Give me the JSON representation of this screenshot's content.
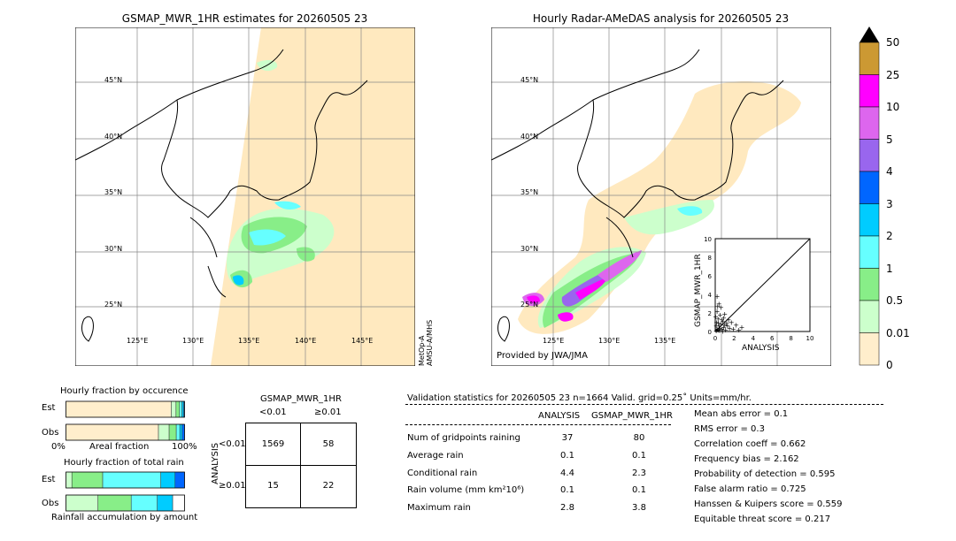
{
  "left_map": {
    "title": "GSMAP_MWR_1HR estimates for 20260505 23",
    "lat_labels": [
      "45°N",
      "40°N",
      "35°N",
      "30°N",
      "25°N"
    ],
    "lon_labels": [
      "125°E",
      "130°E",
      "135°E",
      "140°E",
      "145°E"
    ],
    "satellite_note": "MetOp-A\nAMSU-A/MHS"
  },
  "right_map": {
    "title": "Hourly Radar-AMeDAS analysis for 20260505 23",
    "lat_labels": [
      "45°N",
      "40°N",
      "35°N",
      "30°N",
      "25°N"
    ],
    "lon_labels": [
      "125°E",
      "130°E",
      "135°E"
    ],
    "provider": "Provided by JWA/JMA"
  },
  "colorbar": {
    "levels": [
      "50",
      "25",
      "10",
      "5",
      "4",
      "3",
      "2",
      "1",
      "0.5",
      "0.01",
      "0"
    ],
    "colors": [
      "#cc9933",
      "#ff00ff",
      "#dd66ee",
      "#9966ee",
      "#0066ff",
      "#00ccff",
      "#66ffff",
      "#88ee88",
      "#ccffcc",
      "#ffeecc"
    ]
  },
  "chart_data": [
    {
      "type": "scatter",
      "xlabel": "ANALYSIS",
      "ylabel": "GSMAP_MWR_1HR",
      "xlim": [
        0,
        10
      ],
      "ylim": [
        0,
        10
      ],
      "ticks": [
        "0",
        "2",
        "4",
        "6",
        "8",
        "10"
      ],
      "points": [
        [
          0.1,
          0.1
        ],
        [
          0.2,
          0.3
        ],
        [
          0.3,
          0.2
        ],
        [
          0.4,
          0.6
        ],
        [
          0.5,
          0.4
        ],
        [
          0.6,
          0.8
        ],
        [
          0.7,
          0.3
        ],
        [
          0.8,
          1.1
        ],
        [
          0.9,
          0.5
        ],
        [
          1.0,
          0.7
        ],
        [
          1.1,
          0.2
        ],
        [
          1.2,
          0.9
        ],
        [
          0.3,
          1.4
        ],
        [
          0.5,
          1.8
        ],
        [
          0.2,
          2.2
        ],
        [
          0.6,
          2.6
        ],
        [
          0.4,
          3.0
        ],
        [
          0.2,
          3.8
        ],
        [
          0.9,
          1.5
        ],
        [
          1.3,
          0.6
        ],
        [
          1.5,
          0.4
        ],
        [
          1.7,
          1.0
        ],
        [
          1.9,
          0.3
        ],
        [
          2.2,
          0.7
        ],
        [
          2.5,
          0.2
        ],
        [
          2.8,
          0.5
        ],
        [
          0.1,
          0.6
        ],
        [
          0.15,
          1.0
        ],
        [
          0.35,
          0.9
        ],
        [
          0.7,
          1.3
        ],
        [
          1.0,
          1.9
        ],
        [
          0.45,
          0.15
        ],
        [
          1.4,
          1.3
        ],
        [
          0.25,
          2.7
        ],
        [
          0.05,
          1.6
        ],
        [
          0.8,
          0.05
        ]
      ]
    },
    {
      "type": "bar",
      "title": "Hourly fraction by occurence",
      "categories": [
        "Est",
        "Obs"
      ],
      "xlabel": "Areal fraction",
      "x_ticks": [
        "0%",
        "100%"
      ],
      "segments": {
        "Est": [
          {
            "value": 0.888,
            "color": "#ffeecc"
          },
          {
            "value": 0.04,
            "color": "#ccffcc"
          },
          {
            "value": 0.03,
            "color": "#88ee88"
          },
          {
            "value": 0.02,
            "color": "#66ffff"
          },
          {
            "value": 0.015,
            "color": "#00ccff"
          },
          {
            "value": 0.007,
            "color": "#0066ff"
          }
        ],
        "Obs": [
          {
            "value": 0.78,
            "color": "#ffeecc"
          },
          {
            "value": 0.09,
            "color": "#ccffcc"
          },
          {
            "value": 0.06,
            "color": "#88ee88"
          },
          {
            "value": 0.03,
            "color": "#66ffff"
          },
          {
            "value": 0.02,
            "color": "#00ccff"
          },
          {
            "value": 0.02,
            "color": "#0066ff"
          }
        ]
      }
    },
    {
      "type": "bar",
      "title": "Hourly fraction of total rain",
      "categories": [
        "Est",
        "Obs"
      ],
      "xlabel": "Rainfall accumulation by amount",
      "segments": {
        "Est": [
          {
            "value": 0.05,
            "color": "#ccffcc"
          },
          {
            "value": 0.26,
            "color": "#88ee88"
          },
          {
            "value": 0.49,
            "color": "#66ffff"
          },
          {
            "value": 0.12,
            "color": "#00ccff"
          },
          {
            "value": 0.08,
            "color": "#0066ff"
          }
        ],
        "Obs": [
          {
            "value": 0.27,
            "color": "#ccffcc"
          },
          {
            "value": 0.28,
            "color": "#88ee88"
          },
          {
            "value": 0.22,
            "color": "#66ffff"
          },
          {
            "value": 0.13,
            "color": "#00ccff"
          },
          {
            "value": 0.1,
            "color": "#ffffff"
          }
        ]
      }
    }
  ],
  "contingency": {
    "title": "GSMAP_MWR_1HR",
    "col_labels": [
      "<0.01",
      "≥0.01"
    ],
    "row_axis": "ANALYSIS",
    "row_labels": [
      "<0.01",
      "≥0.01"
    ],
    "cells": [
      [
        "1569",
        "58"
      ],
      [
        "15",
        "22"
      ]
    ]
  },
  "validation": {
    "header": "Validation statistics for 20260505 23  n=1664 Valid. grid=0.25˚ Units=mm/hr.",
    "col_analysis": "ANALYSIS",
    "col_gsmap": "GSMAP_MWR_1HR",
    "rows": [
      {
        "label": "Num of gridpoints raining",
        "analysis": "37",
        "gsmap": "80"
      },
      {
        "label": "Average rain",
        "analysis": "0.1",
        "gsmap": "0.1"
      },
      {
        "label": "Conditional rain",
        "analysis": "4.4",
        "gsmap": "2.3"
      },
      {
        "label": "Rain volume (mm km²10⁶)",
        "analysis": "0.1",
        "gsmap": "0.1"
      },
      {
        "label": "Maximum rain",
        "analysis": "2.8",
        "gsmap": "3.8"
      }
    ],
    "scores": [
      "Mean abs error =    0.1",
      "RMS error =    0.3",
      "Correlation coeff =  0.662",
      "Frequency bias =  2.162",
      "Probability of detection =  0.595",
      "False alarm ratio =  0.725",
      "Hanssen & Kuipers score =  0.559",
      "Equitable threat score =  0.217"
    ]
  }
}
